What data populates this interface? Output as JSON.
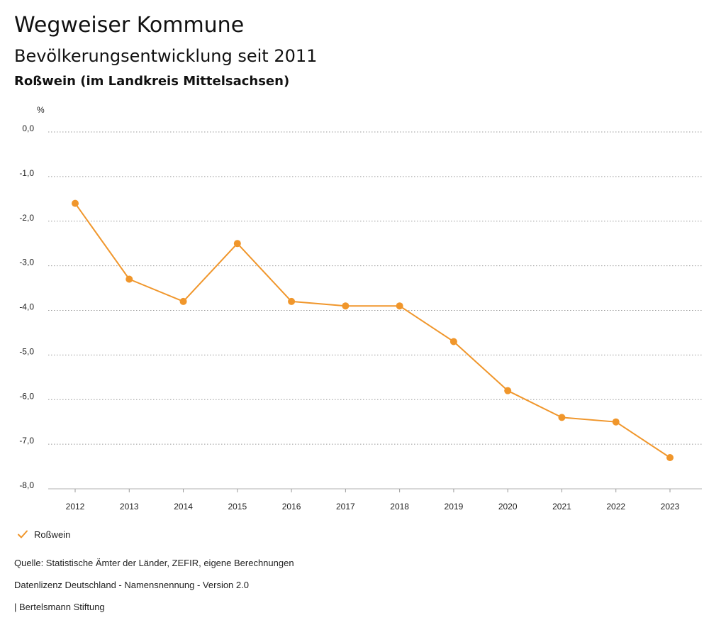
{
  "header": {
    "title": "Wegweiser Kommune",
    "subtitle": "Bevölkerungsentwicklung seit 2011",
    "region": "Roßwein (im Landkreis Mittelsachsen)"
  },
  "chart_data": {
    "type": "line",
    "ylabel": "%",
    "x": [
      "2012",
      "2013",
      "2014",
      "2015",
      "2016",
      "2017",
      "2018",
      "2019",
      "2020",
      "2021",
      "2022",
      "2023"
    ],
    "series": [
      {
        "name": "Roßwein",
        "values": [
          -1.6,
          -3.3,
          -3.8,
          -2.5,
          -3.8,
          -3.9,
          -3.9,
          -4.7,
          -5.8,
          -6.4,
          -6.5,
          -7.3
        ]
      }
    ],
    "ylim": [
      -8,
      0
    ],
    "yticks": [
      "0,0",
      "-1,0",
      "-2,0",
      "-3,0",
      "-4,0",
      "-5,0",
      "-6,0",
      "-7,0",
      "-8,0"
    ],
    "grid": true,
    "legend": "bottom-left",
    "color": "#f0962b"
  },
  "footer": {
    "source": "Quelle: Statistische Ämter der Länder, ZEFIR, eigene Berechnungen",
    "license": "Datenlizenz Deutschland - Namensnennung - Version 2.0",
    "publisher": "| Bertelsmann Stiftung"
  }
}
